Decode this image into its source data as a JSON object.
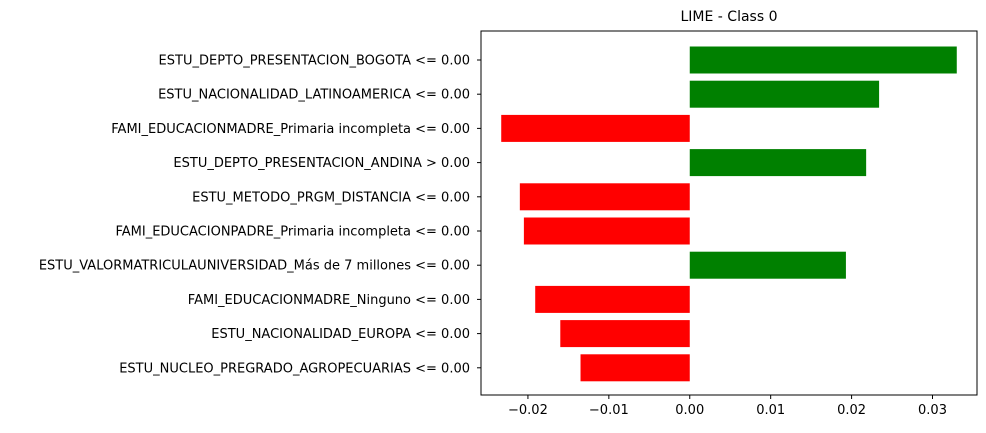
{
  "chart_data": {
    "type": "bar",
    "orientation": "horizontal",
    "title": "LIME - Class 0",
    "xlabel": "",
    "ylabel": "",
    "xlim": [
      -0.0258,
      0.0355
    ],
    "xticks": [
      -0.02,
      -0.01,
      0.0,
      0.01,
      0.02,
      0.03
    ],
    "xtick_labels": [
      "−0.02",
      "−0.01",
      "0.00",
      "0.01",
      "0.02",
      "0.03"
    ],
    "grid": false,
    "legend": "none",
    "colors": {
      "positive": "#008000",
      "negative": "#ff0000"
    },
    "categories": [
      "ESTU_DEPTO_PRESENTACION_BOGOTA <= 0.00",
      "ESTU_NACIONALIDAD_LATINOAMERICA <= 0.00",
      "FAMI_EDUCACIONMADRE_Primaria incompleta <= 0.00",
      "ESTU_DEPTO_PRESENTACION_ANDINA > 0.00",
      "ESTU_METODO_PRGM_DISTANCIA <= 0.00",
      "FAMI_EDUCACIONPADRE_Primaria incompleta <= 0.00",
      "ESTU_VALORMATRICULAUNIVERSIDAD_Más de 7 millones <= 0.00",
      "FAMI_EDUCACIONMADRE_Ninguno <= 0.00",
      "ESTU_NACIONALIDAD_EUROPA <= 0.00",
      "ESTU_NUCLEO_PREGRADO_AGROPECUARIAS <= 0.00"
    ],
    "values": [
      0.033,
      0.0234,
      -0.0233,
      0.0218,
      -0.021,
      -0.0205,
      0.0193,
      -0.0191,
      -0.016,
      -0.0135
    ]
  }
}
